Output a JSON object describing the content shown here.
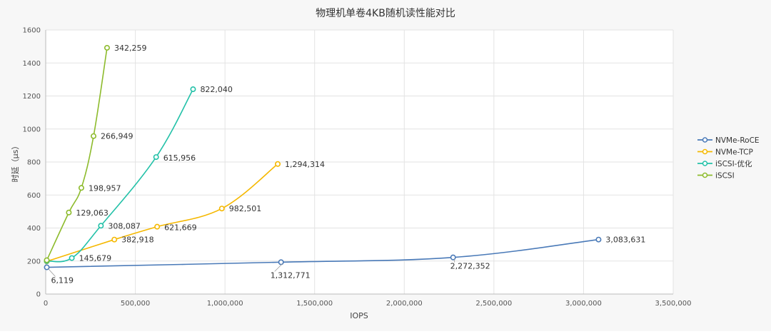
{
  "chart_data": {
    "type": "line",
    "title": "物理机单卷4KB随机读性能对比",
    "xlabel": "IOPS",
    "ylabel": "时延（μs）",
    "xlim": [
      0,
      3500000
    ],
    "ylim": [
      0,
      1600
    ],
    "x_ticks": [
      "0",
      "500,000",
      "1,000,000",
      "1,500,000",
      "2,000,000",
      "2,500,000",
      "3,000,000",
      "3,500,000"
    ],
    "y_ticks": [
      "0",
      "200",
      "400",
      "600",
      "800",
      "1000",
      "1200",
      "1400",
      "1600"
    ],
    "grid": true,
    "legend_position": "right",
    "series": [
      {
        "name": "NVMe-RoCE",
        "color": "#4a7ab8",
        "points": [
          {
            "x": 6119,
            "y": 162,
            "label": "6,119"
          },
          {
            "x": 1312771,
            "y": 193,
            "label": "1,312,771"
          },
          {
            "x": 2272352,
            "y": 222,
            "label": "2,272,352"
          },
          {
            "x": 3083631,
            "y": 330,
            "label": "3,083,631"
          }
        ]
      },
      {
        "name": "NVMe-TCP",
        "color": "#f5b800",
        "points": [
          {
            "x": 6119,
            "y": 198,
            "label": ""
          },
          {
            "x": 382918,
            "y": 330,
            "label": "382,918"
          },
          {
            "x": 621669,
            "y": 408,
            "label": "621,669"
          },
          {
            "x": 982501,
            "y": 518,
            "label": "982,501"
          },
          {
            "x": 1294314,
            "y": 788,
            "label": "1,294,314"
          }
        ]
      },
      {
        "name": "iSCSI-优化",
        "color": "#23c1a8",
        "points": [
          {
            "x": 6119,
            "y": 200,
            "label": ""
          },
          {
            "x": 145679,
            "y": 218,
            "label": "145,679"
          },
          {
            "x": 308087,
            "y": 414,
            "label": "308,087"
          },
          {
            "x": 615956,
            "y": 830,
            "label": "615,956"
          },
          {
            "x": 822040,
            "y": 1241,
            "label": "822,040"
          }
        ]
      },
      {
        "name": "iSCSI",
        "color": "#8dbb2c",
        "points": [
          {
            "x": 6119,
            "y": 205,
            "label": ""
          },
          {
            "x": 129063,
            "y": 494,
            "label": "129,063"
          },
          {
            "x": 198957,
            "y": 643,
            "label": "198,957"
          },
          {
            "x": 266949,
            "y": 957,
            "label": "266,949"
          },
          {
            "x": 342259,
            "y": 1492,
            "label": "342,259"
          }
        ]
      }
    ]
  }
}
